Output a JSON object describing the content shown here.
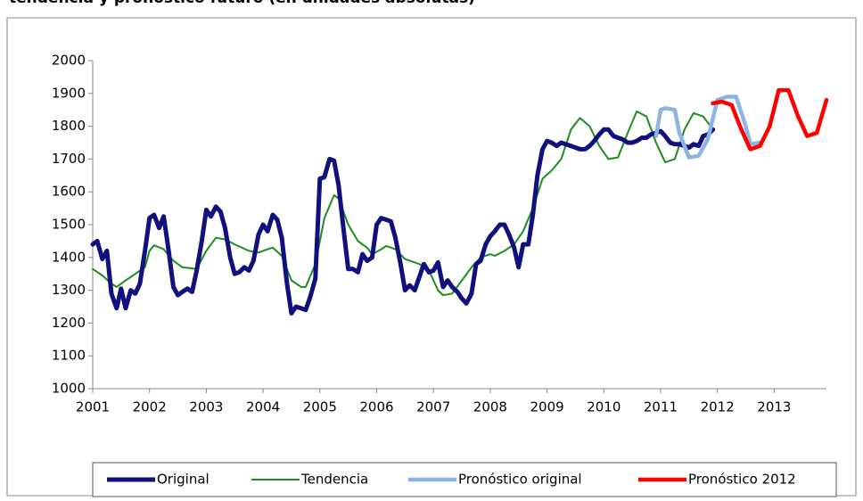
{
  "chart_data": {
    "type": "line",
    "title": "tendencia y pronóstico futuro (en unidades absolutas)",
    "xlim": [
      2001,
      2013.92
    ],
    "xticks": [
      2001,
      2002,
      2003,
      2004,
      2005,
      2006,
      2007,
      2008,
      2009,
      2010,
      2011,
      2012,
      2013
    ],
    "ylim": [
      1000,
      2000
    ],
    "yticks": [
      1000,
      1100,
      1200,
      1300,
      1400,
      1500,
      1600,
      1700,
      1800,
      1900,
      2000
    ],
    "grid": false,
    "legend": "bottom",
    "series": [
      {
        "name": "Tendencia",
        "color": "#1e8c1e",
        "width": 2,
        "x": [
          2001.0,
          2001.17,
          2001.33,
          2001.42,
          2001.58,
          2001.75,
          2001.92,
          2002.0,
          2002.08,
          2002.25,
          2002.42,
          2002.58,
          2002.83,
          2003.0,
          2003.17,
          2003.33,
          2003.5,
          2003.75,
          2003.92,
          2004.08,
          2004.17,
          2004.33,
          2004.5,
          2004.67,
          2004.75,
          2004.92,
          2005.08,
          2005.25,
          2005.33,
          2005.5,
          2005.67,
          2005.83,
          2005.92,
          2006.08,
          2006.17,
          2006.33,
          2006.5,
          2006.75,
          2006.92,
          2007.08,
          2007.17,
          2007.33,
          2007.5,
          2007.67,
          2007.83,
          2008.0,
          2008.08,
          2008.25,
          2008.42,
          2008.58,
          2008.75,
          2008.92,
          2009.08,
          2009.25,
          2009.42,
          2009.58,
          2009.75,
          2009.92,
          2010.08,
          2010.25,
          2010.42,
          2010.58,
          2010.75,
          2010.92,
          2011.08,
          2011.25,
          2011.42,
          2011.58,
          2011.75,
          2011.92
        ],
        "values": [
          1365,
          1345,
          1320,
          1310,
          1330,
          1350,
          1370,
          1420,
          1437,
          1425,
          1390,
          1370,
          1365,
          1420,
          1460,
          1455,
          1440,
          1420,
          1415,
          1425,
          1430,
          1405,
          1330,
          1310,
          1310,
          1380,
          1520,
          1590,
          1580,
          1500,
          1450,
          1430,
          1410,
          1425,
          1435,
          1425,
          1395,
          1380,
          1360,
          1300,
          1285,
          1290,
          1330,
          1370,
          1400,
          1410,
          1405,
          1420,
          1440,
          1480,
          1550,
          1640,
          1665,
          1700,
          1790,
          1825,
          1800,
          1740,
          1700,
          1705,
          1780,
          1845,
          1830,
          1750,
          1690,
          1700,
          1790,
          1840,
          1830,
          1790
        ]
      },
      {
        "name": "Original",
        "color": "#10107e",
        "width": 5,
        "x": [
          2001.0,
          2001.08,
          2001.17,
          2001.25,
          2001.33,
          2001.42,
          2001.5,
          2001.58,
          2001.67,
          2001.75,
          2001.83,
          2001.92,
          2002.0,
          2002.08,
          2002.17,
          2002.25,
          2002.33,
          2002.42,
          2002.5,
          2002.58,
          2002.67,
          2002.75,
          2002.83,
          2002.92,
          2003.0,
          2003.08,
          2003.17,
          2003.25,
          2003.33,
          2003.42,
          2003.5,
          2003.58,
          2003.67,
          2003.75,
          2003.83,
          2003.92,
          2004.0,
          2004.08,
          2004.17,
          2004.25,
          2004.33,
          2004.42,
          2004.5,
          2004.58,
          2004.67,
          2004.75,
          2004.83,
          2004.92,
          2005.0,
          2005.08,
          2005.17,
          2005.25,
          2005.33,
          2005.42,
          2005.5,
          2005.58,
          2005.67,
          2005.75,
          2005.83,
          2005.92,
          2006.0,
          2006.08,
          2006.17,
          2006.25,
          2006.33,
          2006.42,
          2006.5,
          2006.58,
          2006.67,
          2006.75,
          2006.83,
          2006.92,
          2007.0,
          2007.08,
          2007.17,
          2007.25,
          2007.33,
          2007.42,
          2007.5,
          2007.58,
          2007.67,
          2007.75,
          2007.83,
          2007.92,
          2008.0,
          2008.08,
          2008.17,
          2008.25,
          2008.33,
          2008.42,
          2008.5,
          2008.58,
          2008.67,
          2008.75,
          2008.83,
          2008.92,
          2009.0,
          2009.08,
          2009.17,
          2009.25,
          2009.33,
          2009.42,
          2009.5,
          2009.58,
          2009.67,
          2009.75,
          2009.83,
          2009.92,
          2010.0,
          2010.08,
          2010.17,
          2010.25,
          2010.33,
          2010.42,
          2010.5,
          2010.58,
          2010.67,
          2010.75,
          2010.83,
          2010.92,
          2011.0,
          2011.08,
          2011.17,
          2011.25,
          2011.33,
          2011.42,
          2011.5,
          2011.58,
          2011.67,
          2011.75,
          2011.83,
          2011.92
        ],
        "values": [
          1440,
          1450,
          1395,
          1420,
          1290,
          1245,
          1305,
          1245,
          1300,
          1290,
          1320,
          1420,
          1520,
          1530,
          1490,
          1525,
          1430,
          1310,
          1285,
          1295,
          1305,
          1295,
          1360,
          1450,
          1545,
          1525,
          1555,
          1540,
          1490,
          1400,
          1350,
          1355,
          1370,
          1360,
          1390,
          1470,
          1500,
          1480,
          1530,
          1515,
          1460,
          1320,
          1230,
          1250,
          1245,
          1240,
          1280,
          1335,
          1640,
          1645,
          1700,
          1695,
          1620,
          1480,
          1365,
          1365,
          1355,
          1410,
          1390,
          1400,
          1500,
          1520,
          1515,
          1510,
          1460,
          1380,
          1300,
          1315,
          1300,
          1340,
          1380,
          1355,
          1360,
          1385,
          1310,
          1330,
          1310,
          1295,
          1275,
          1260,
          1290,
          1380,
          1390,
          1440,
          1465,
          1480,
          1500,
          1500,
          1470,
          1430,
          1370,
          1440,
          1440,
          1530,
          1650,
          1730,
          1755,
          1750,
          1740,
          1750,
          1745,
          1740,
          1735,
          1730,
          1730,
          1740,
          1755,
          1775,
          1790,
          1790,
          1770,
          1765,
          1760,
          1750,
          1750,
          1755,
          1765,
          1765,
          1775,
          1780,
          1785,
          1770,
          1750,
          1745,
          1745,
          1740,
          1735,
          1745,
          1740,
          1770,
          1775,
          1790
        ]
      },
      {
        "name": "Pronóstico original",
        "color": "#8db4e2",
        "width": 4.5,
        "x": [
          2010.92,
          2011.0,
          2011.08,
          2011.25,
          2011.33,
          2011.5,
          2011.67,
          2011.83,
          2012.0,
          2012.17,
          2012.33,
          2012.5,
          2012.58,
          2012.75
        ],
        "values": [
          1770,
          1850,
          1855,
          1850,
          1780,
          1705,
          1710,
          1760,
          1880,
          1890,
          1890,
          1800,
          1745,
          1750
        ]
      },
      {
        "name": "Pronóstico 2012",
        "color": "#ff0000",
        "width": 4.5,
        "x": [
          2011.92,
          2012.08,
          2012.25,
          2012.42,
          2012.58,
          2012.75,
          2012.92,
          2013.08,
          2013.25,
          2013.42,
          2013.58,
          2013.75,
          2013.92
        ],
        "values": [
          1870,
          1875,
          1865,
          1790,
          1730,
          1740,
          1800,
          1910,
          1910,
          1830,
          1770,
          1780,
          1880
        ]
      }
    ]
  }
}
